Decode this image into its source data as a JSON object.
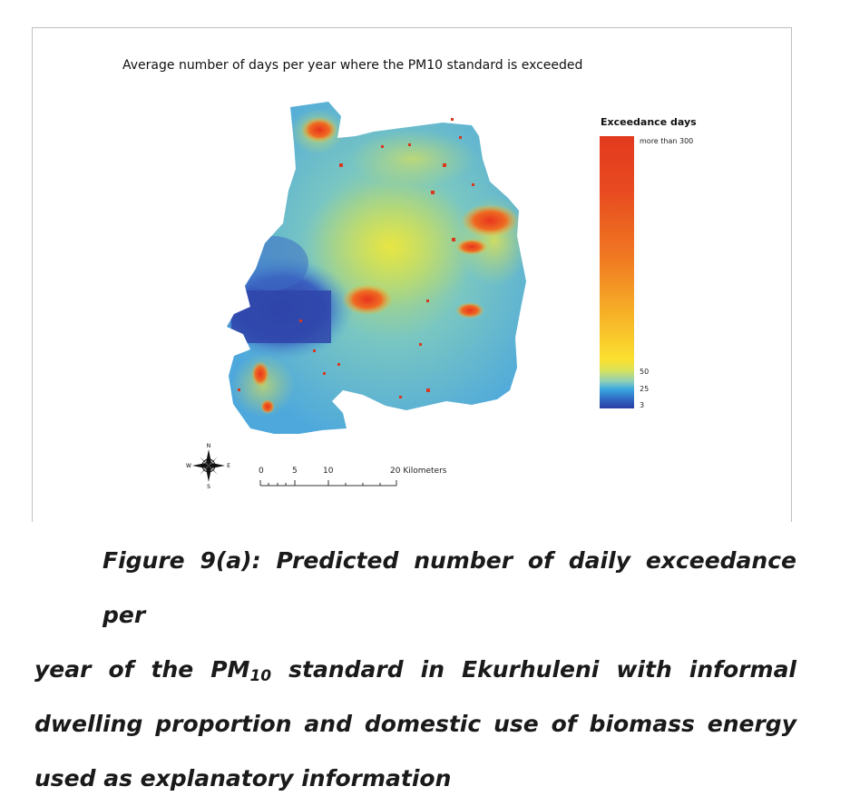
{
  "map": {
    "title": "Average number of days per year where the PM10 standard is exceeded",
    "legend": {
      "title": "Exceedance days",
      "labels": [
        "more than 300",
        "50",
        "25",
        "3"
      ]
    },
    "compass": {
      "n": "N",
      "s": "S",
      "e": "E",
      "w": "W"
    },
    "scale_bar": {
      "ticks": [
        "0",
        "5",
        "10",
        "20 Kilometers"
      ]
    },
    "colors": {
      "high": "#e23a1e",
      "mid": "#fbe030",
      "low": "#3aa6e0",
      "min": "#2c3ea6"
    }
  },
  "caption": {
    "line1": "Figure 9(a): Predicted number of daily exceedance per",
    "line2a": "year of the PM",
    "line2sub": "10",
    "line2b": " standard in Ekurhuleni with informal",
    "line3": "dwelling proportion and domestic use of biomass energy",
    "line4": "used as explanatory information"
  }
}
